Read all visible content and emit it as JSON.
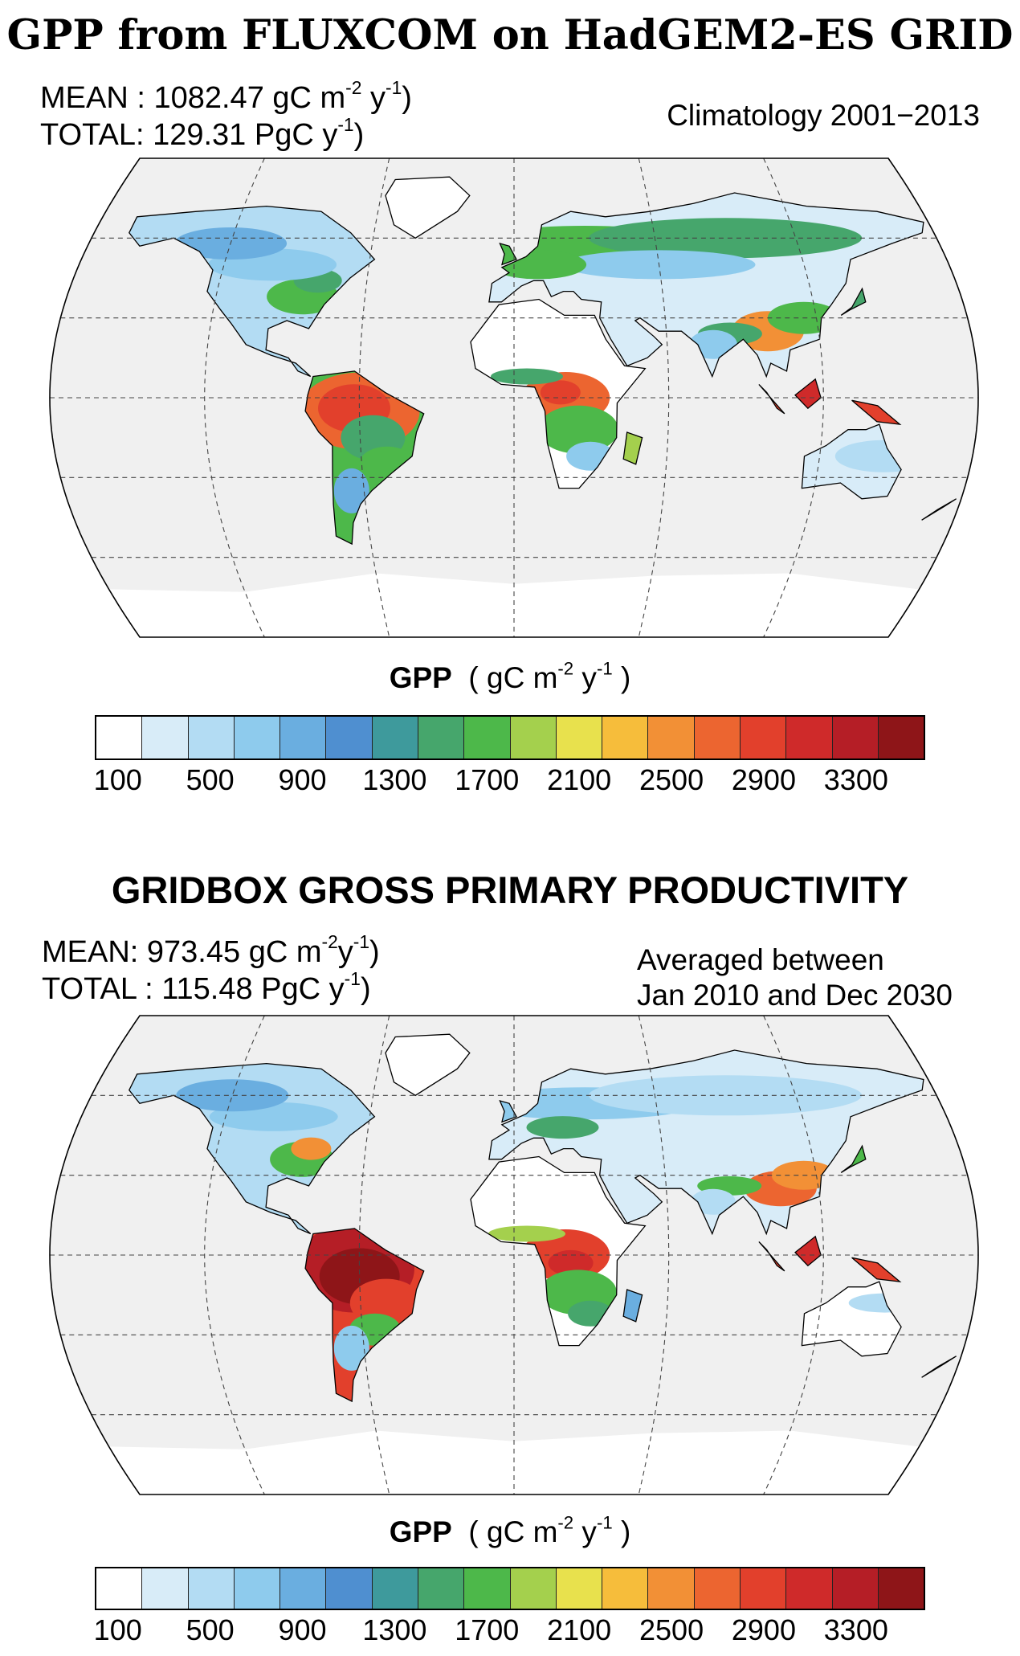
{
  "panels": [
    {
      "title": "GPP from FLUXCOM on HadGEM2-ES GRID",
      "mean_label": "MEAN : 1082.47 gC m",
      "mean_exp1": "-2",
      "mean_mid": " y",
      "mean_exp2": "-1",
      "mean_end": ")",
      "total_label": "TOTAL: 129.31  PgC  y",
      "total_exp": "-1",
      "total_end": ")",
      "period_line1": "Climatology 2001−2013",
      "period_line2": ""
    },
    {
      "title": "GRIDBOX GROSS PRIMARY PRODUCTIVITY",
      "mean_label": "MEAN: 973.45 gC m",
      "mean_exp1": "-2",
      "mean_mid": "y",
      "mean_exp2": "-1",
      "mean_end": ")",
      "total_label": "TOTAL : 115.48  PgC  y",
      "total_exp": "-1",
      "total_end": ")",
      "period_line1": "Averaged between",
      "period_line2": "Jan 2010 and Dec 2030"
    }
  ],
  "colorbar": {
    "var": "GPP",
    "units_open": "( gC m",
    "units_exp1": "-2",
    "units_mid": " y",
    "units_exp2": "-1",
    "units_close": ")",
    "tick_labels": [
      "100",
      "500",
      "900",
      "1300",
      "1700",
      "2100",
      "2500",
      "2900",
      "3300"
    ],
    "colors": [
      "#ffffff",
      "#d8ecf8",
      "#b3dcf3",
      "#8ecbed",
      "#6aaee0",
      "#4f8fd0",
      "#3e9a9c",
      "#46a66c",
      "#4db84a",
      "#a4d04d",
      "#e8e14d",
      "#f6bd3b",
      "#f29036",
      "#ec6530",
      "#e2402c",
      "#cf2a2a",
      "#b51e26",
      "#8e1518"
    ]
  },
  "map": {
    "ocean_color": "#f0f0f0",
    "projection": "Robinson"
  }
}
